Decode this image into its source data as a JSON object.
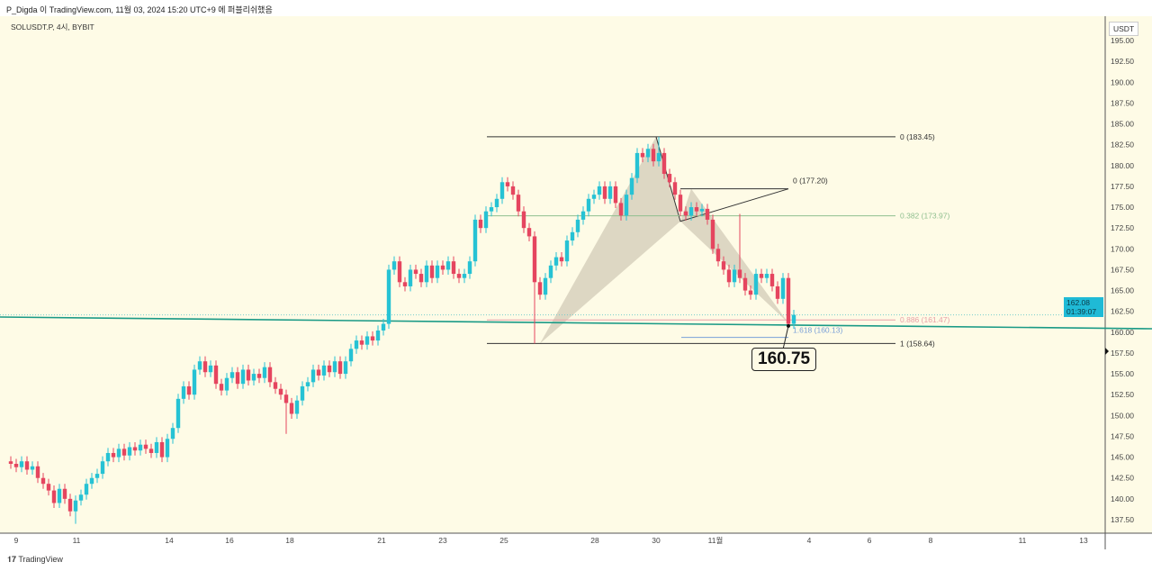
{
  "header": {
    "publisher": "P_Digda 이 TradingView.com, 11월 03, 2024 15:20 UTC+9 에 퍼블리쉬했음"
  },
  "symbol": "SOLUSDT.P, 4시, BYBIT",
  "footer": "TradingView",
  "colors": {
    "up": "#26c2d4",
    "down": "#e5455f",
    "bg": "#fefbe6",
    "trend": "#1a9a86"
  },
  "chart_data": {
    "type": "candlestick",
    "currency": "USDT",
    "ylim": [
      136,
      197
    ],
    "yticks": [
      "195.00",
      "192.50",
      "190.00",
      "187.50",
      "185.00",
      "182.50",
      "180.00",
      "177.50",
      "175.00",
      "172.50",
      "170.00",
      "167.50",
      "165.00",
      "162.50",
      "160.00",
      "157.50",
      "155.00",
      "152.50",
      "150.00",
      "147.50",
      "145.00",
      "142.50",
      "140.00",
      "137.50"
    ],
    "xticks": [
      "9",
      "11",
      "14",
      "16",
      "18",
      "21",
      "23",
      "25",
      "28",
      "30",
      "11월",
      "4",
      "6",
      "8",
      "11",
      "13"
    ],
    "current_price": "162.08",
    "countdown": "01:39:07",
    "first_open": 144.5,
    "closes": [
      144.2,
      143.8,
      144.5,
      143.5,
      143.9,
      142.5,
      141.8,
      141.0,
      139.5,
      141.2,
      140.0,
      138.5,
      139.8,
      140.5,
      141.8,
      142.5,
      143.0,
      144.5,
      145.5,
      145.0,
      146.0,
      145.2,
      146.2,
      145.8,
      146.5,
      146.0,
      145.5,
      146.8,
      145.0,
      147.2,
      148.5,
      152.0,
      153.5,
      152.5,
      155.5,
      156.5,
      155.2,
      156.0,
      153.8,
      153.0,
      154.5,
      155.2,
      153.8,
      155.5,
      154.2,
      155.0,
      154.5,
      155.8,
      154.0,
      153.2,
      152.5,
      151.5,
      150.2,
      151.8,
      153.5,
      154.0,
      155.5,
      154.8,
      156.0,
      155.2,
      156.5,
      155.0,
      156.5,
      158.0,
      159.0,
      158.5,
      159.5,
      159.0,
      160.2,
      161.0,
      167.5,
      168.5,
      166.0,
      165.5,
      167.5,
      167.0,
      166.0,
      168.0,
      166.5,
      168.0,
      167.5,
      168.5,
      167.0,
      166.5,
      167.0,
      168.5,
      173.5,
      172.5,
      174.5,
      175.0,
      176.0,
      178.0,
      177.5,
      176.5,
      174.5,
      172.5,
      171.5,
      166.0,
      164.5,
      166.5,
      168.0,
      169.0,
      168.5,
      171.0,
      172.0,
      173.5,
      174.5,
      176.0,
      176.5,
      177.5,
      176.0,
      177.5,
      175.5,
      174.0,
      176.5,
      178.5,
      181.5,
      181.0,
      182.0,
      180.5,
      181.5,
      179.0,
      178.0,
      176.5,
      174.5,
      174.0,
      175.0,
      174.5,
      174.8,
      173.5,
      170.0,
      168.5,
      167.5,
      166.0,
      167.5,
      166.5,
      165.0,
      164.5,
      167.0,
      166.5,
      167.0,
      165.5,
      164.0,
      166.5,
      161.0,
      162.08
    ],
    "wick_extremes": [
      {
        "i": 12,
        "low": 137.0
      },
      {
        "i": 51,
        "low": 147.8
      },
      {
        "i": 97,
        "low": 158.64
      },
      {
        "i": 120,
        "high": 183.45
      },
      {
        "i": 135,
        "high": 174.2
      },
      {
        "i": 144,
        "low": 160.75
      }
    ],
    "fib_levels": [
      {
        "label": "0 (183.45)",
        "price": 183.45
      },
      {
        "label": "0.382 (173.97)",
        "price": 173.97
      },
      {
        "label": "0.886 (161.47)",
        "price": 161.47
      },
      {
        "label": "1.618 (160.13)",
        "price": 160.13
      },
      {
        "label": "1 (158.64)",
        "price": 158.64
      },
      {
        "label": "0 (177.20)",
        "price": 177.2
      }
    ],
    "callout": "160.75"
  }
}
